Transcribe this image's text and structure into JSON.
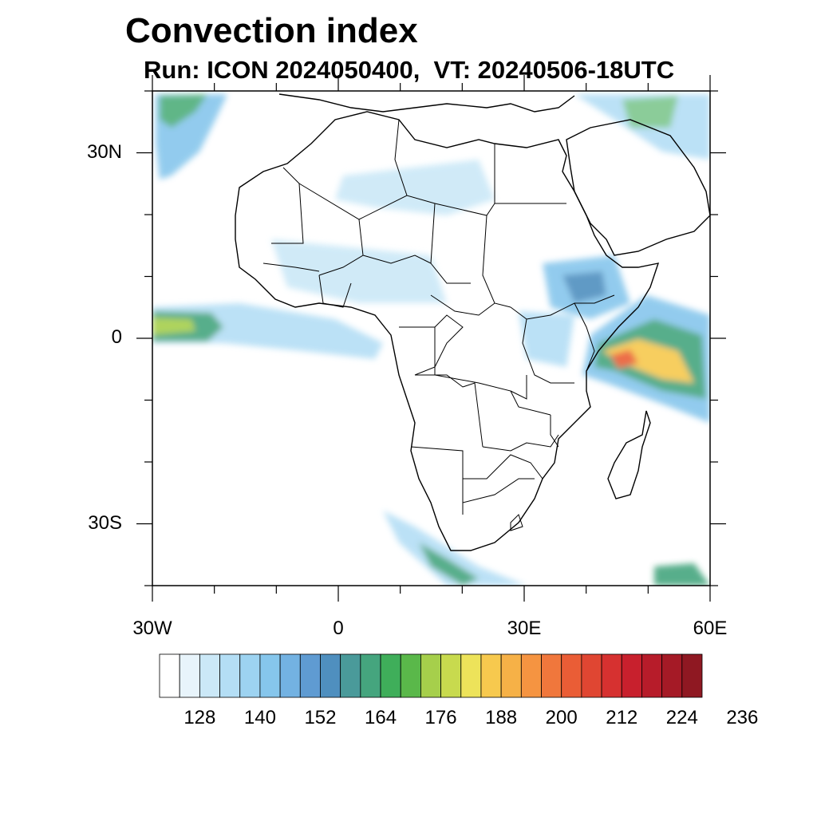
{
  "title": "Convection index",
  "subtitle": "Run: ICON 2024050400,  VT: 20240506-18UTC",
  "map": {
    "region": "Africa",
    "projection": "cylindrical-equidistant",
    "lon_range": [
      -30,
      60
    ],
    "lat_range": [
      -40,
      40
    ],
    "lat_labels": [
      {
        "lat": 30,
        "label": "30N"
      },
      {
        "lat": 0,
        "label": "0"
      },
      {
        "lat": -30,
        "label": "30S"
      }
    ],
    "lon_labels": [
      {
        "lon": -30,
        "label": "30W"
      },
      {
        "lon": 0,
        "label": "0"
      },
      {
        "lon": 30,
        "label": "30E"
      },
      {
        "lon": 60,
        "label": "60E"
      }
    ],
    "minor_lon_ticks": [
      -30,
      -20,
      -10,
      0,
      10,
      20,
      30,
      40,
      50,
      60
    ],
    "minor_lat_ticks": [
      40,
      30,
      20,
      10,
      0,
      -10,
      -20,
      -30,
      -40
    ]
  },
  "colorbar": {
    "colors": [
      "#ffffff",
      "#e8f4fb",
      "#cbe8f7",
      "#b4def5",
      "#9dd3f1",
      "#86c6ec",
      "#73b2e2",
      "#5f9bd2",
      "#4f8fbf",
      "#4a9a9a",
      "#45a57e",
      "#3fae5a",
      "#5ab84a",
      "#a6cf4b",
      "#c8da4e",
      "#ede35a",
      "#f7c94e",
      "#f6b147",
      "#f59441",
      "#f0773c",
      "#ea5d36",
      "#e04632",
      "#d63130",
      "#c8202d",
      "#b71c2a",
      "#a51a26",
      "#8f1822"
    ],
    "labels": [
      "128",
      "140",
      "152",
      "164",
      "176",
      "188",
      "200",
      "212",
      "224",
      "236"
    ]
  }
}
